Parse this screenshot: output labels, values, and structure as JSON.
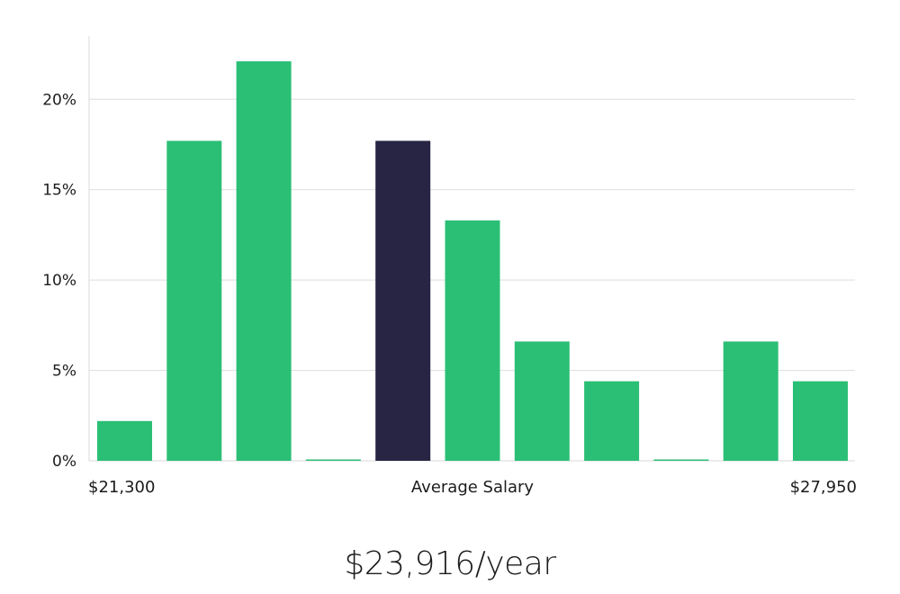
{
  "chart_data": {
    "type": "bar",
    "categories": [
      "1",
      "2",
      "3",
      "4",
      "5",
      "6",
      "7",
      "8",
      "9",
      "10",
      "11"
    ],
    "values": [
      2.2,
      17.7,
      22.1,
      0,
      17.7,
      13.3,
      6.6,
      4.4,
      0,
      6.6,
      4.4
    ],
    "highlight_index": 4,
    "ylim": [
      0,
      23.5
    ],
    "yticks": [
      0,
      5,
      10,
      15,
      20
    ],
    "ytick_labels": [
      "0%",
      "5%",
      "10%",
      "15%",
      "20%"
    ],
    "grid": true,
    "x_labels": {
      "left": "$21,300",
      "center": "Average Salary",
      "right": "$27,950"
    },
    "colors": {
      "bar": "#2bbf76",
      "highlight": "#272543",
      "grid": "#dddddd",
      "axis": "#d9d9d9"
    }
  },
  "salary": "$23,916/year"
}
